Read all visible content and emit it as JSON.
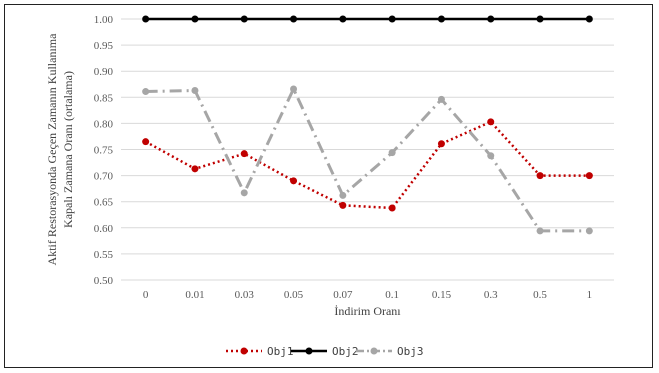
{
  "chart_data": {
    "type": "line",
    "categories": [
      "0",
      "0.01",
      "0.03",
      "0.05",
      "0.07",
      "0.1",
      "0.15",
      "0.3",
      "0.5",
      "1"
    ],
    "xlabel": "İndirim Oranı",
    "ylabel_lines": [
      "Aktif Restorasyonda Geçen Zamanın Kullanıma",
      "Kapalı Zamana Oranı (ortalama)"
    ],
    "ylim": [
      0.5,
      1.0
    ],
    "yticks": [
      "0.50",
      "0.55",
      "0.60",
      "0.65",
      "0.70",
      "0.75",
      "0.80",
      "0.85",
      "0.90",
      "0.95",
      "1.00"
    ],
    "grid": "horizontal",
    "legend_position": "bottom",
    "series": [
      {
        "name": "Obj1",
        "color": "#c00000",
        "style": "dotted",
        "values": [
          0.765,
          0.713,
          0.742,
          0.69,
          0.643,
          0.638,
          0.761,
          0.803,
          0.7,
          0.7
        ]
      },
      {
        "name": "Obj2",
        "color": "#000000",
        "style": "solid",
        "values": [
          1.0,
          1.0,
          1.0,
          1.0,
          1.0,
          1.0,
          1.0,
          1.0,
          1.0,
          1.0
        ]
      },
      {
        "name": "Obj3",
        "color": "#a6a6a6",
        "style": "dashdot",
        "values": [
          0.861,
          0.863,
          0.667,
          0.866,
          0.662,
          0.744,
          0.846,
          0.738,
          0.594,
          0.594
        ]
      }
    ]
  }
}
